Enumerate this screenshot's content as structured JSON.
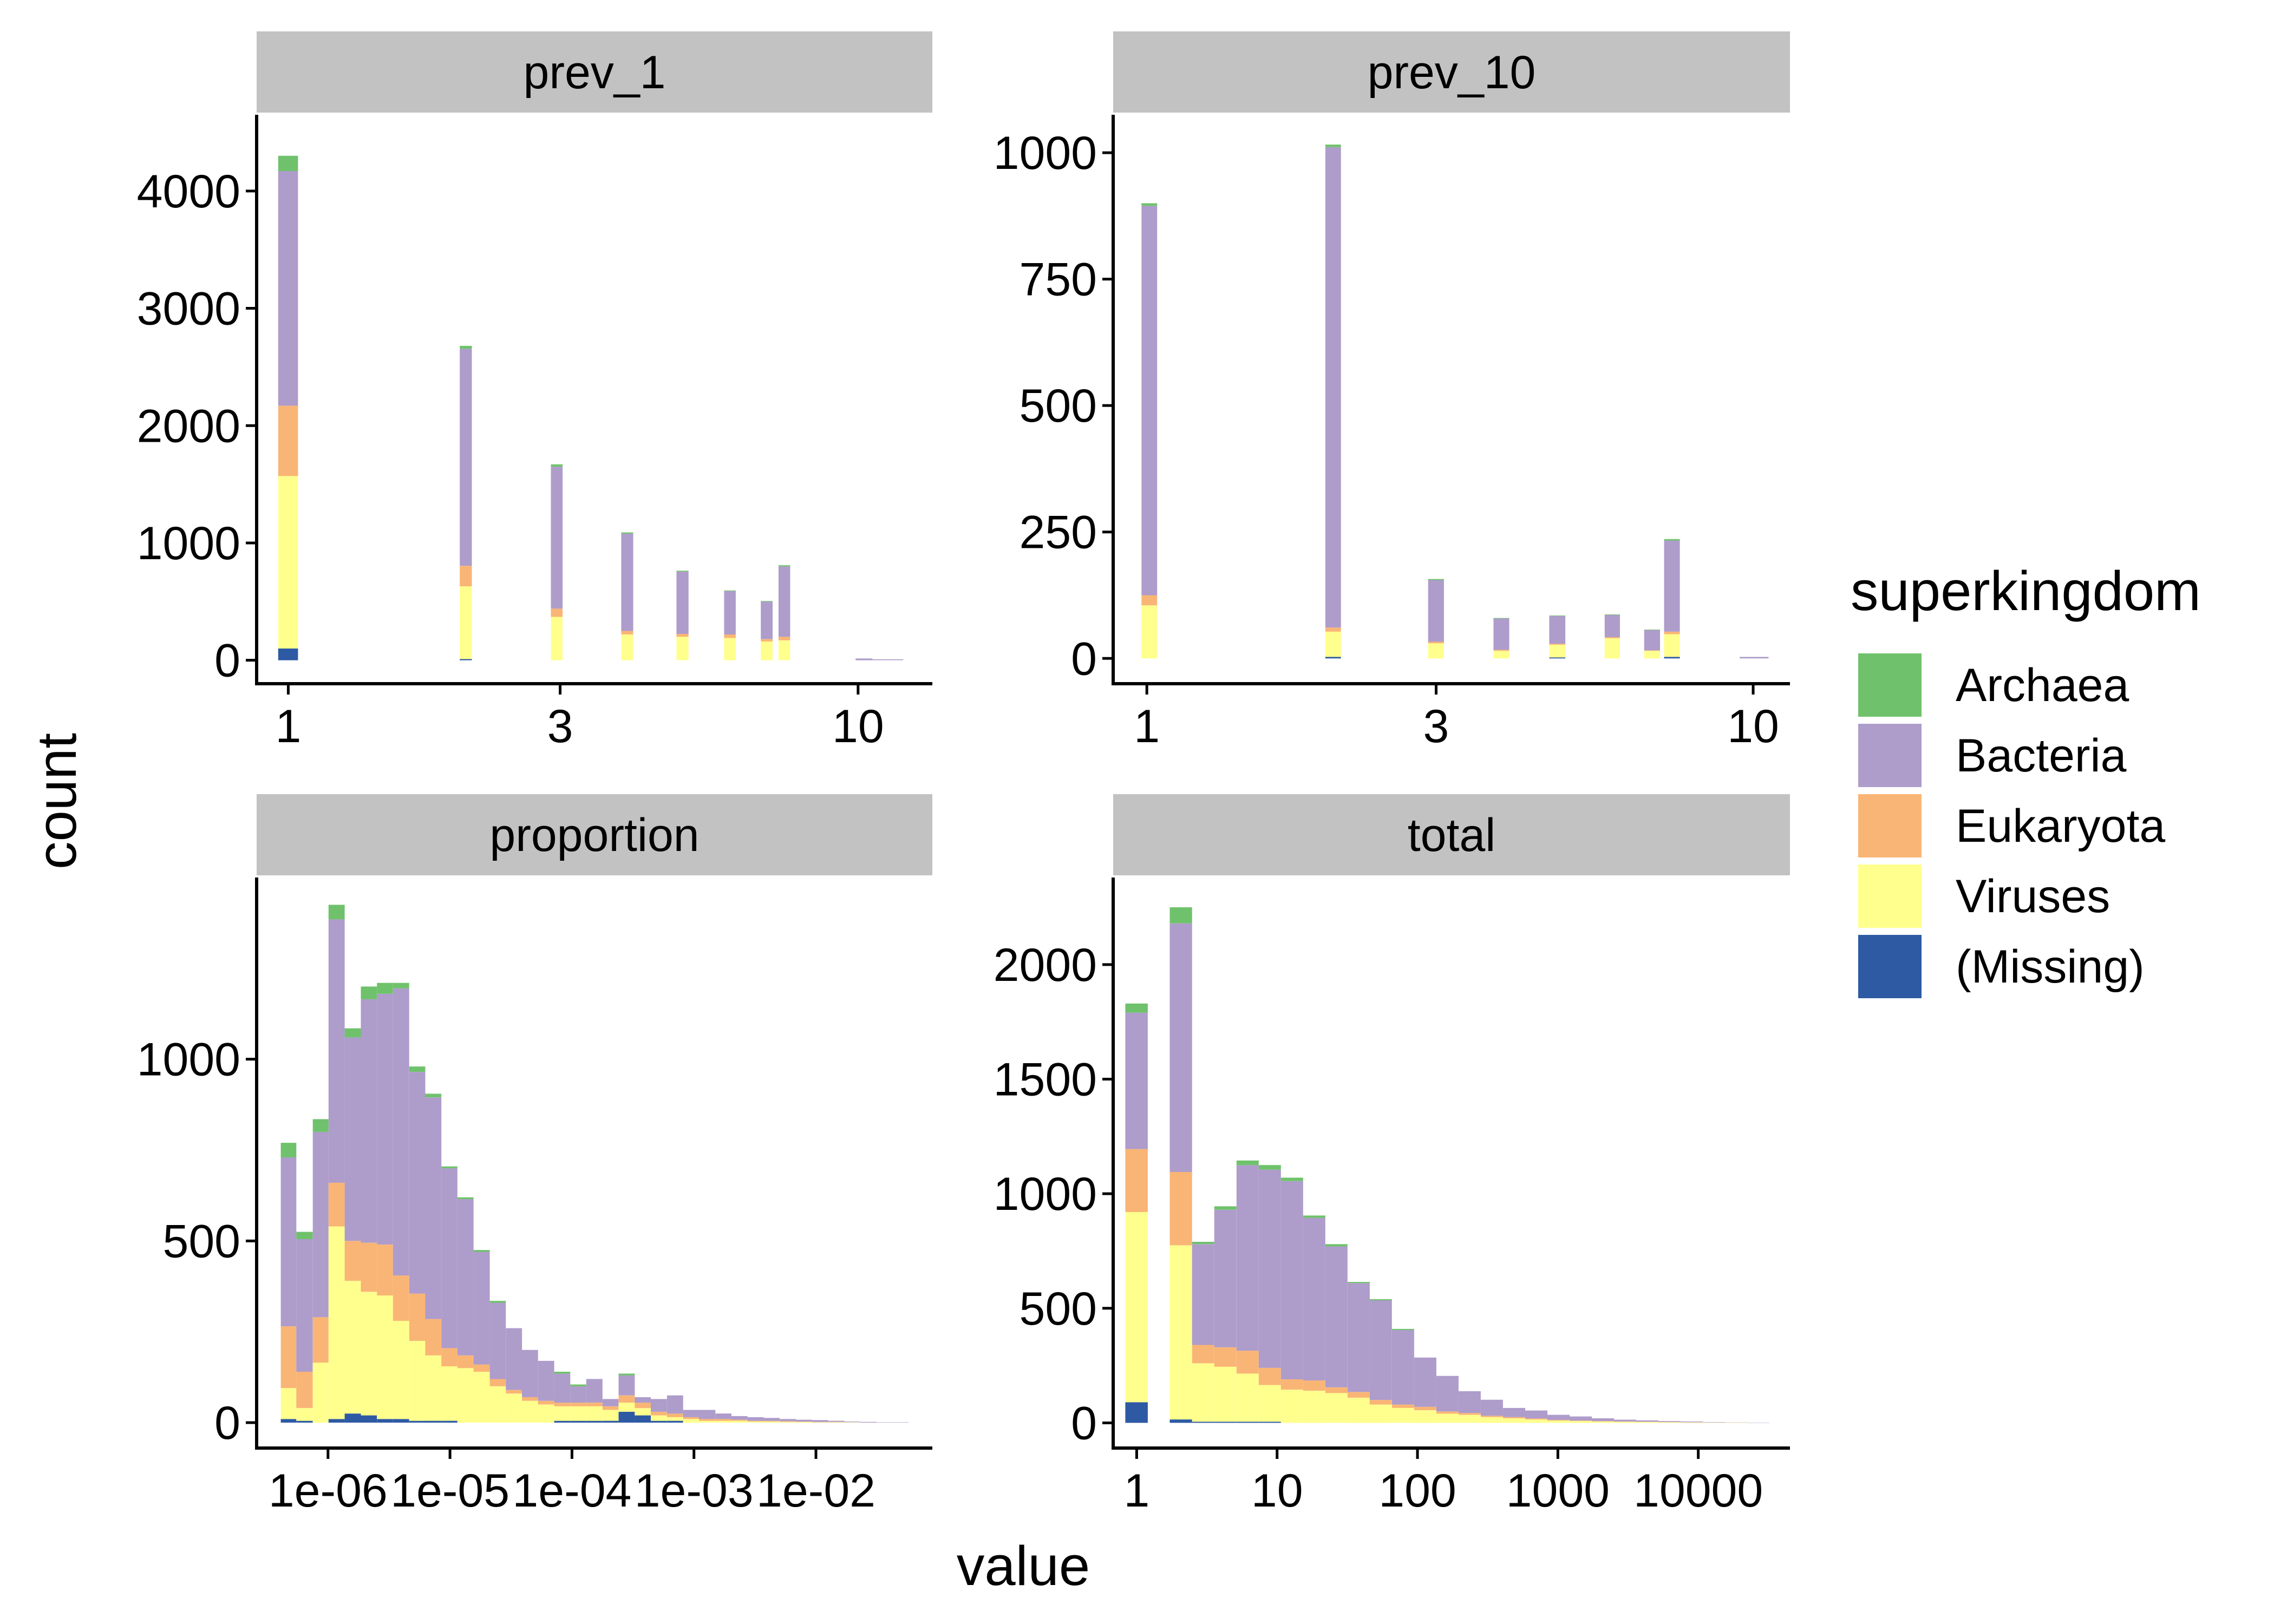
{
  "figure": {
    "xlabel": "value",
    "ylabel": "count"
  },
  "legend": {
    "title": "superkingdom",
    "items": [
      {
        "label": "Archaea",
        "color": "#6FC26B"
      },
      {
        "label": "Bacteria",
        "color": "#AE9CCB"
      },
      {
        "label": "Eukaryota",
        "color": "#F9B575"
      },
      {
        "label": "Viruses",
        "color": "#FFFF8E"
      },
      {
        "label": "(Missing)",
        "color": "#2D5AA3"
      }
    ]
  },
  "chart_data": [
    {
      "type": "bar",
      "stacked": true,
      "panel": "prev_1",
      "x_scale": "log10",
      "xlim": [
        0.88,
        13.5
      ],
      "ylim": [
        -200,
        4650
      ],
      "xticks": [
        1,
        3,
        10
      ],
      "xtick_labels": [
        "1",
        "3",
        "10"
      ],
      "yticks": [
        0,
        1000,
        2000,
        3000,
        4000
      ],
      "ytick_labels": [
        "0",
        "1000",
        "2000",
        "3000",
        "4000"
      ],
      "bins": [
        [
          0.96,
          1.04
        ],
        [
          2.0,
          2.1
        ],
        [
          2.89,
          3.03
        ],
        [
          3.84,
          4.03
        ],
        [
          4.8,
          5.04
        ],
        [
          5.82,
          6.1
        ],
        [
          6.75,
          7.08
        ],
        [
          7.25,
          7.6
        ],
        [
          9.9,
          10.6
        ],
        [
          10.6,
          12.0
        ]
      ],
      "series": [
        {
          "name": "(Missing)",
          "values": [
            100,
            10,
            0,
            0,
            0,
            0,
            0,
            0,
            0,
            0
          ]
        },
        {
          "name": "Viruses",
          "values": [
            1470,
            620,
            370,
            220,
            200,
            190,
            160,
            170,
            0,
            0
          ]
        },
        {
          "name": "Eukaryota",
          "values": [
            600,
            175,
            70,
            30,
            25,
            30,
            20,
            30,
            0,
            0
          ]
        },
        {
          "name": "Bacteria",
          "values": [
            2000,
            1850,
            1210,
            830,
            530,
            370,
            320,
            600,
            15,
            8
          ]
        },
        {
          "name": "Archaea",
          "values": [
            130,
            25,
            20,
            10,
            8,
            5,
            5,
            10,
            0,
            0
          ]
        }
      ]
    },
    {
      "type": "bar",
      "stacked": true,
      "panel": "prev_10",
      "x_scale": "log10",
      "xlim": [
        0.88,
        11.5
      ],
      "ylim": [
        -50,
        1075
      ],
      "xticks": [
        1,
        3,
        10
      ],
      "xtick_labels": [
        "1",
        "3",
        "10"
      ],
      "yticks": [
        0,
        250,
        500,
        750,
        1000
      ],
      "ytick_labels": [
        "0",
        "250",
        "500",
        "750",
        "1000"
      ],
      "bins": [
        [
          0.98,
          1.04
        ],
        [
          1.97,
          2.09
        ],
        [
          2.91,
          3.09
        ],
        [
          3.73,
          3.96
        ],
        [
          4.61,
          4.9
        ],
        [
          5.69,
          6.03
        ],
        [
          6.61,
          7.02
        ],
        [
          7.13,
          7.57
        ],
        [
          9.5,
          10.6
        ]
      ],
      "series": [
        {
          "name": "(Missing)",
          "values": [
            0,
            3,
            0,
            0,
            2,
            0,
            0,
            3,
            0
          ]
        },
        {
          "name": "Viruses",
          "values": [
            105,
            50,
            30,
            15,
            25,
            40,
            15,
            45,
            0
          ]
        },
        {
          "name": "Eukaryota",
          "values": [
            20,
            8,
            3,
            2,
            2,
            2,
            1,
            5,
            0
          ]
        },
        {
          "name": "Bacteria",
          "values": [
            770,
            950,
            122,
            62,
            55,
            44,
            40,
            180,
            3
          ]
        },
        {
          "name": "Archaea",
          "values": [
            5,
            5,
            2,
            1,
            1,
            1,
            1,
            3,
            0
          ]
        }
      ]
    },
    {
      "type": "bar",
      "stacked": true,
      "panel": "proportion",
      "x_scale": "log10",
      "xlim": [
        2.6e-07,
        0.09
      ],
      "ylim": [
        -70,
        1500
      ],
      "xticks": [
        1e-06,
        1e-05,
        0.0001,
        0.001,
        0.01
      ],
      "xtick_labels": [
        "1e-06",
        "1e-05",
        "1e-04",
        "1e-03",
        "1e-02"
      ],
      "yticks": [
        0,
        500,
        1000
      ],
      "ytick_labels": [
        "0",
        "500",
        "1000"
      ],
      "bin_edges": [
        4.1e-07,
        5.5e-07,
        7.5e-07,
        1.01e-06,
        1.37e-06,
        1.86e-06,
        2.52e-06,
        3.41e-06,
        4.63e-06,
        6.27e-06,
        8.5e-06,
        1.15e-05,
        1.56e-05,
        2.12e-05,
        2.87e-05,
        3.89e-05,
        5.27e-05,
        7.15e-05,
        9.69e-05,
        0.000131,
        0.000178,
        0.000241,
        0.000327,
        0.000443,
        0.000601,
        0.000815,
        0.0011,
        0.0015,
        0.00203,
        0.00275,
        0.00373,
        0.00505,
        0.00685,
        0.00928,
        0.0126,
        0.0171,
        0.0231,
        0.0314,
        0.0425,
        0.0576
      ],
      "series": [
        {
          "name": "(Missing)",
          "values": [
            10,
            5,
            0,
            10,
            25,
            20,
            10,
            10,
            5,
            5,
            5,
            0,
            0,
            0,
            0,
            0,
            0,
            5,
            5,
            5,
            5,
            30,
            20,
            5,
            5,
            0,
            0,
            0,
            0,
            0,
            0,
            0,
            0,
            0,
            0,
            0,
            0,
            0,
            0
          ]
        },
        {
          "name": "Viruses",
          "values": [
            85,
            35,
            165,
            530,
            365,
            340,
            340,
            270,
            220,
            180,
            150,
            150,
            140,
            100,
            80,
            60,
            50,
            40,
            40,
            40,
            30,
            25,
            20,
            15,
            10,
            10,
            5,
            5,
            5,
            3,
            3,
            2,
            2,
            1,
            1,
            1,
            0,
            0,
            0
          ]
        },
        {
          "name": "Eukaryota",
          "values": [
            170,
            100,
            125,
            120,
            110,
            135,
            140,
            125,
            130,
            100,
            50,
            35,
            20,
            20,
            10,
            10,
            10,
            10,
            10,
            10,
            10,
            20,
            15,
            10,
            10,
            5,
            5,
            5,
            3,
            2,
            2,
            2,
            1,
            1,
            1,
            0,
            0,
            0,
            0
          ]
        },
        {
          "name": "Bacteria",
          "values": [
            465,
            365,
            510,
            725,
            560,
            670,
            690,
            790,
            610,
            610,
            495,
            430,
            310,
            210,
            170,
            130,
            110,
            80,
            45,
            65,
            20,
            55,
            15,
            35,
            50,
            20,
            25,
            15,
            10,
            10,
            8,
            6,
            5,
            5,
            3,
            2,
            2,
            1,
            1
          ]
        },
        {
          "name": "Archaea",
          "values": [
            40,
            20,
            35,
            40,
            25,
            35,
            30,
            15,
            15,
            10,
            5,
            5,
            5,
            5,
            0,
            0,
            0,
            5,
            5,
            0,
            0,
            5,
            0,
            0,
            0,
            0,
            0,
            0,
            0,
            0,
            0,
            0,
            0,
            0,
            0,
            0,
            0,
            0,
            0
          ]
        }
      ]
    },
    {
      "type": "bar",
      "stacked": true,
      "panel": "total",
      "x_scale": "log10",
      "xlim": [
        0.68,
        45000
      ],
      "ylim": [
        -110,
        2380
      ],
      "xticks": [
        1,
        10,
        100,
        1000,
        10000
      ],
      "xtick_labels": [
        "1",
        "10",
        "100",
        "1000",
        "10000"
      ],
      "yticks": [
        0,
        500,
        1000,
        1500,
        2000
      ],
      "ytick_labels": [
        "0",
        "500",
        "1000",
        "1500",
        "2000"
      ],
      "bin_edges": [
        0.83,
        1.2,
        1.72,
        2.48,
        3.57,
        5.14,
        7.4,
        10.65,
        15.33,
        22.06,
        31.76,
        45.7,
        65.8,
        94.7,
        136.3,
        196.2,
        282.4,
        406.5,
        585.1,
        842.2,
        1212,
        1745,
        2511,
        3614,
        5202,
        7488,
        10777,
        15512,
        22327,
        32136
      ],
      "series": [
        {
          "name": "(Missing)",
          "values": [
            90,
            0,
            15,
            5,
            5,
            5,
            5,
            0,
            0,
            0,
            0,
            0,
            0,
            0,
            0,
            0,
            0,
            0,
            0,
            0,
            0,
            0,
            0,
            0,
            0,
            0,
            0,
            0,
            0
          ]
        },
        {
          "name": "Viruses",
          "values": [
            830,
            0,
            760,
            255,
            240,
            210,
            160,
            145,
            140,
            130,
            110,
            80,
            65,
            55,
            40,
            35,
            25,
            20,
            15,
            10,
            8,
            6,
            5,
            4,
            3,
            2,
            1,
            1,
            0
          ]
        },
        {
          "name": "Eukaryota",
          "values": [
            275,
            0,
            320,
            80,
            85,
            100,
            75,
            45,
            45,
            25,
            25,
            20,
            15,
            15,
            10,
            8,
            6,
            5,
            4,
            3,
            2,
            2,
            1,
            1,
            1,
            1,
            0,
            0,
            0
          ]
        },
        {
          "name": "Bacteria",
          "values": [
            595,
            0,
            1085,
            440,
            600,
            810,
            865,
            865,
            710,
            615,
            475,
            435,
            325,
            215,
            155,
            95,
            70,
            40,
            35,
            22,
            18,
            12,
            8,
            6,
            4,
            3,
            2,
            1,
            1
          ]
        },
        {
          "name": "Archaea",
          "values": [
            40,
            0,
            70,
            10,
            15,
            20,
            20,
            15,
            10,
            10,
            5,
            5,
            5,
            0,
            0,
            0,
            0,
            0,
            0,
            0,
            0,
            0,
            0,
            0,
            0,
            0,
            0,
            0,
            0
          ]
        }
      ]
    }
  ]
}
